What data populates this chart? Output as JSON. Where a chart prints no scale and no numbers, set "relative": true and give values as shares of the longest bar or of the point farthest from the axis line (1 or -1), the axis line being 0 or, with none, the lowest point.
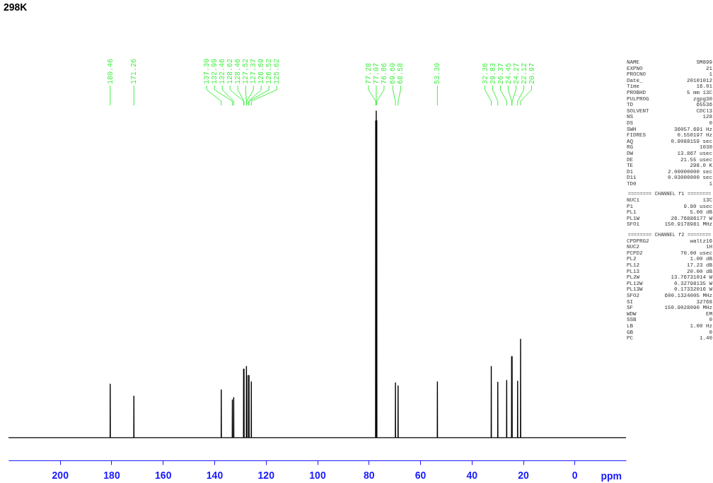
{
  "chart_data": {
    "type": "line",
    "title": "298K",
    "xlabel": "ppm",
    "relative": true,
    "color": "#000000",
    "xlim": [
      220,
      -20
    ],
    "xticks": [
      200,
      180,
      160,
      140,
      120,
      100,
      80,
      60,
      40,
      20,
      0
    ],
    "x": [
      220,
      180.5,
      180.46,
      180.42,
      171.3,
      171.26,
      171.22,
      137.34,
      137.3,
      137.26,
      133.03,
      132.99,
      132.95,
      132.5,
      132.46,
      132.42,
      128.66,
      128.62,
      128.58,
      128.5,
      128.46,
      128.42,
      127.56,
      127.52,
      127.48,
      127.41,
      127.37,
      127.33,
      126.73,
      126.69,
      126.65,
      126.56,
      126.52,
      126.48,
      125.66,
      125.62,
      125.58,
      77.32,
      77.28,
      77.24,
      77.11,
      77.07,
      77.03,
      76.9,
      76.86,
      76.82,
      69.64,
      69.6,
      69.56,
      68.62,
      68.58,
      68.54,
      53.34,
      53.3,
      53.26,
      32.4,
      32.36,
      32.32,
      29.87,
      29.83,
      29.79,
      26.41,
      26.37,
      26.33,
      24.49,
      24.45,
      24.41,
      24.31,
      24.27,
      24.23,
      22.16,
      22.12,
      22.08,
      21.01,
      20.97,
      20.93,
      -20
    ],
    "values": [
      0.065,
      0.065,
      0.218,
      0.065,
      0.065,
      0.184,
      0.065,
      0.065,
      0.202,
      0.065,
      0.065,
      0.173,
      0.065,
      0.065,
      0.18,
      0.065,
      0.065,
      0.261,
      0.065,
      0.065,
      0.261,
      0.065,
      0.065,
      0.269,
      0.065,
      0.065,
      0.243,
      0.065,
      0.065,
      0.243,
      0.065,
      0.065,
      0.243,
      0.065,
      0.065,
      0.225,
      0.065,
      0.065,
      0.972,
      0.065,
      0.065,
      1,
      0.065,
      0.065,
      0.972,
      0.065,
      0.065,
      0.222,
      0.065,
      0.065,
      0.213,
      0.065,
      0.065,
      0.225,
      0.065,
      0.065,
      0.269,
      0.065,
      0.065,
      0.224,
      0.065,
      0.065,
      0.229,
      0.065,
      0.065,
      0.297,
      0.065,
      0.065,
      0.297,
      0.065,
      0.065,
      0.227,
      0.065,
      0.065,
      0.347,
      0.065,
      0.065
    ],
    "annotations": [
      {
        "text": "180.46",
        "x": 180.46
      },
      {
        "text": "171.26",
        "x": 171.26
      },
      {
        "text": "137.30",
        "x": 137.3
      },
      {
        "text": "132.99",
        "x": 132.99
      },
      {
        "text": "132.46",
        "x": 132.46
      },
      {
        "text": "128.62",
        "x": 128.62
      },
      {
        "text": "128.46",
        "x": 128.46
      },
      {
        "text": "127.52",
        "x": 127.52
      },
      {
        "text": "127.37",
        "x": 127.37
      },
      {
        "text": "126.69",
        "x": 126.69
      },
      {
        "text": "126.52",
        "x": 126.52
      },
      {
        "text": "125.62",
        "x": 125.62
      },
      {
        "text": "77.28",
        "x": 77.28
      },
      {
        "text": "77.07",
        "x": 77.07
      },
      {
        "text": "76.86",
        "x": 76.86
      },
      {
        "text": "69.60",
        "x": 69.6
      },
      {
        "text": "68.58",
        "x": 68.58
      },
      {
        "text": "53.30",
        "x": 53.3
      },
      {
        "text": "32.36",
        "x": 32.36
      },
      {
        "text": "29.83",
        "x": 29.83
      },
      {
        "text": "26.37",
        "x": 26.37
      },
      {
        "text": "24.45",
        "x": 24.45
      },
      {
        "text": "24.27",
        "x": 24.27
      },
      {
        "text": "22.12",
        "x": 22.12
      },
      {
        "text": "20.97",
        "x": 20.97
      },
      "NAME SM899",
      "EXPNO 21",
      "PROCNO 1",
      "Date_ 20101012",
      "Time 16.01",
      "PROBHD 5 mm 13C",
      "PULPROG zgpg30",
      "TD 65536",
      "SOLVENT CDCl3",
      "NS 128",
      "DS 0",
      "SWH 36057.691 Hz",
      "FIDRES 0.550197 Hz",
      "AQ 0.9088159 sec",
      "RG 1030",
      "DW 13.867 usec",
      "DE 21.55 usec",
      "TE 298.0 K",
      "D1 2.00000000 sec",
      "D11 0.03000000 sec",
      "TD0 1",
      "======== CHANNEL f1 ========",
      "NUC1 13C",
      "P1 9.80 usec",
      "PL1 5.00 dB",
      "PL1W 26.76886177 W",
      "SFO1 150.9178981 MHz",
      "======== CHANNEL f2 ========",
      "CPDPRG2 waltz16",
      "NUC2 1H",
      "PCPD2 70.00 usec",
      "PL2 1.00 dB",
      "PL12 17.23 dB",
      "PL13 20.00 dB",
      "PL2W 13.76731014 W",
      "PL12W 0.32798135 W",
      "PL13W 0.17332016 W",
      "SFO2 600.1324005 MHz",
      "SI 32768",
      "SF 150.9028090 MHz",
      "WDW EM",
      "SSB 0",
      "LB 1.00 Hz",
      "GB 0",
      "PC 1.40"
    ]
  }
}
